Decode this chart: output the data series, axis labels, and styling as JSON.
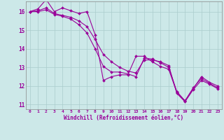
{
  "xlabel": "Windchill (Refroidissement éolien,°C)",
  "xlim": [
    -0.5,
    23.5
  ],
  "ylim": [
    10.75,
    16.55
  ],
  "bg_color": "#cce8e8",
  "line_color": "#990099",
  "grid_color": "#aacccc",
  "xticks": [
    0,
    1,
    2,
    3,
    4,
    5,
    6,
    7,
    8,
    9,
    10,
    11,
    12,
    13,
    14,
    15,
    16,
    17,
    18,
    19,
    20,
    21,
    22,
    23
  ],
  "yticks": [
    11,
    12,
    13,
    14,
    15,
    16
  ],
  "line1_x": [
    0,
    1,
    2,
    3,
    4,
    5,
    6,
    7,
    8,
    9,
    10,
    11,
    12,
    13,
    14,
    15,
    16,
    17,
    18,
    19,
    20,
    21,
    22,
    23
  ],
  "line1_y": [
    16.0,
    16.15,
    16.65,
    16.0,
    16.2,
    16.05,
    15.9,
    16.0,
    14.75,
    12.3,
    12.5,
    12.6,
    12.6,
    13.6,
    13.6,
    13.3,
    13.05,
    12.9,
    11.65,
    11.2,
    11.85,
    12.5,
    12.2,
    12.0
  ],
  "line2_x": [
    0,
    1,
    2,
    3,
    4,
    5,
    6,
    7,
    8,
    9,
    10,
    11,
    12,
    13,
    14,
    15,
    16,
    17,
    18,
    19,
    20,
    21,
    22,
    23
  ],
  "line2_y": [
    16.0,
    16.05,
    16.2,
    15.9,
    15.8,
    15.7,
    15.5,
    15.2,
    14.5,
    13.7,
    13.3,
    13.0,
    12.8,
    12.7,
    13.4,
    13.4,
    13.3,
    13.1,
    11.6,
    11.15,
    11.8,
    12.3,
    12.1,
    11.85
  ],
  "line3_x": [
    0,
    1,
    2,
    3,
    4,
    5,
    6,
    7,
    8,
    9,
    10,
    11,
    12,
    13,
    14,
    15,
    16,
    17,
    18,
    19,
    20,
    21,
    22,
    23
  ],
  "line3_y": [
    16.0,
    16.0,
    16.1,
    15.85,
    15.75,
    15.6,
    15.3,
    14.85,
    14.0,
    13.05,
    12.75,
    12.75,
    12.65,
    12.5,
    13.5,
    13.45,
    13.25,
    13.0,
    11.7,
    11.2,
    11.9,
    12.4,
    12.15,
    11.9
  ]
}
